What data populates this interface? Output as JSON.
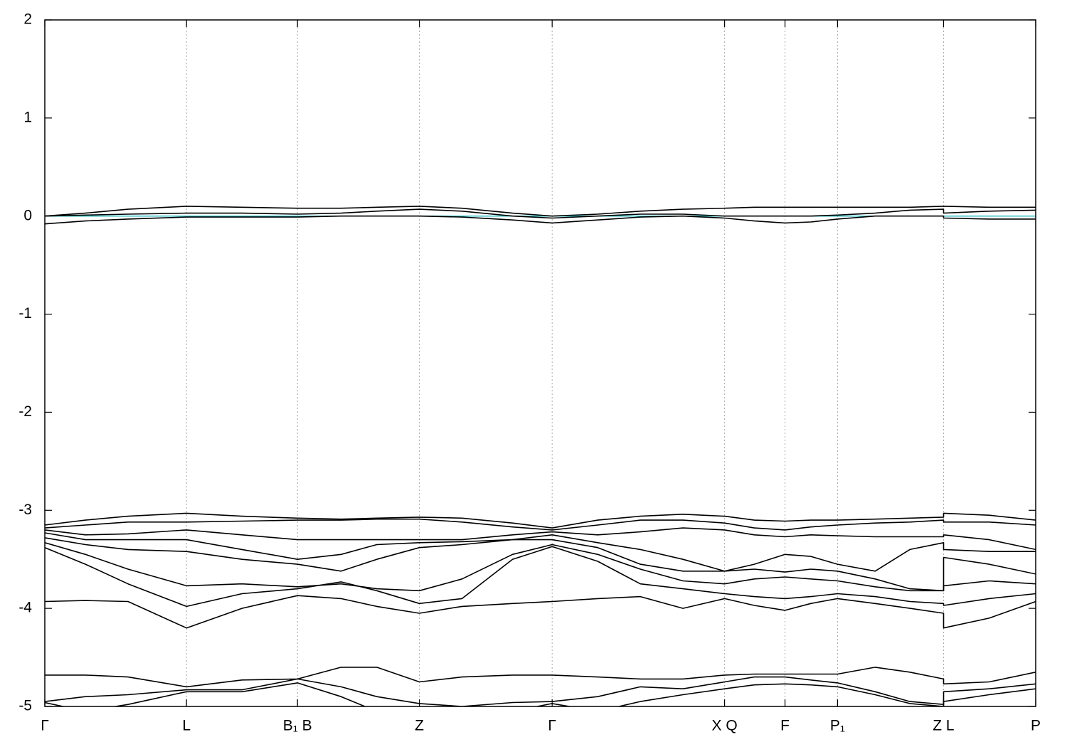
{
  "chart_data": {
    "type": "line",
    "x": [
      0,
      0.041,
      0.084,
      0.143,
      0.199,
      0.255,
      0.299,
      0.335,
      0.378,
      0.421,
      0.472,
      0.512,
      0.558,
      0.601,
      0.644,
      0.686,
      0.716,
      0.747,
      0.773,
      0.8,
      0.838,
      0.873,
      0.907,
      0.907,
      0.953,
      1
    ],
    "xlim": [
      0,
      1
    ],
    "xticks": [
      {
        "value": 0,
        "label": "Γ"
      },
      {
        "value": 0.143,
        "label": "L"
      },
      {
        "value": 0.255,
        "label": "B₁ B"
      },
      {
        "value": 0.378,
        "label": "Z"
      },
      {
        "value": 0.512,
        "label": "Γ"
      },
      {
        "value": 0.686,
        "label": "X Q"
      },
      {
        "value": 0.747,
        "label": "F"
      },
      {
        "value": 0.8,
        "label": "P₁"
      },
      {
        "value": 0.907,
        "label": "Z L"
      },
      {
        "value": 1,
        "label": "P"
      }
    ],
    "ylim": [
      -5,
      2
    ],
    "yticks": [
      -5,
      -4,
      -3,
      -2,
      -1,
      0,
      1,
      2
    ],
    "grid": true,
    "fermi_level": 0,
    "fermi_color": "#33c3c8",
    "series": [
      {
        "color": "#000000",
        "values": [
          0.0,
          0.03,
          0.07,
          0.1,
          0.09,
          0.08,
          0.08,
          0.09,
          0.1,
          0.08,
          0.03,
          0.0,
          0.02,
          0.05,
          0.07,
          0.08,
          0.09,
          0.09,
          0.09,
          0.09,
          0.09,
          0.09,
          0.1,
          0.1,
          0.09,
          0.09
        ]
      },
      {
        "color": "#000000",
        "values": [
          0.0,
          0.01,
          0.02,
          0.03,
          0.03,
          0.02,
          0.03,
          0.05,
          0.07,
          0.05,
          0.0,
          -0.02,
          0.0,
          0.02,
          0.02,
          0.0,
          0.0,
          0.0,
          0.0,
          0.01,
          0.03,
          0.06,
          0.07,
          0.03,
          0.05,
          0.06
        ]
      },
      {
        "color": "#000000",
        "values": [
          -0.08,
          -0.05,
          -0.03,
          -0.01,
          -0.01,
          -0.01,
          0.0,
          0.0,
          0.0,
          -0.01,
          -0.04,
          -0.07,
          -0.04,
          -0.01,
          0.0,
          -0.02,
          -0.05,
          -0.07,
          -0.06,
          -0.03,
          0.0,
          0.0,
          0.0,
          -0.02,
          -0.03,
          -0.03
        ]
      },
      {
        "color": "#000000",
        "values": [
          -3.15,
          -3.1,
          -3.06,
          -3.03,
          -3.06,
          -3.08,
          -3.09,
          -3.08,
          -3.07,
          -3.08,
          -3.13,
          -3.18,
          -3.1,
          -3.06,
          -3.04,
          -3.06,
          -3.1,
          -3.11,
          -3.1,
          -3.1,
          -3.09,
          -3.08,
          -3.07,
          -3.03,
          -3.05,
          -3.1
        ]
      },
      {
        "color": "#000000",
        "values": [
          -3.18,
          -3.15,
          -3.12,
          -3.12,
          -3.11,
          -3.1,
          -3.1,
          -3.09,
          -3.09,
          -3.12,
          -3.17,
          -3.2,
          -3.15,
          -3.1,
          -3.1,
          -3.13,
          -3.18,
          -3.2,
          -3.17,
          -3.15,
          -3.13,
          -3.12,
          -3.1,
          -3.12,
          -3.12,
          -3.15
        ]
      },
      {
        "color": "#000000",
        "values": [
          -3.2,
          -3.25,
          -3.24,
          -3.2,
          -3.25,
          -3.3,
          -3.3,
          -3.3,
          -3.3,
          -3.3,
          -3.25,
          -3.22,
          -3.25,
          -3.22,
          -3.18,
          -3.2,
          -3.25,
          -3.27,
          -3.25,
          -3.26,
          -3.27,
          -3.27,
          -3.27,
          -3.25,
          -3.3,
          -3.4
        ]
      },
      {
        "color": "#000000",
        "values": [
          -3.23,
          -3.3,
          -3.3,
          -3.3,
          -3.4,
          -3.5,
          -3.45,
          -3.35,
          -3.33,
          -3.32,
          -3.3,
          -3.25,
          -3.33,
          -3.4,
          -3.5,
          -3.62,
          -3.55,
          -3.45,
          -3.47,
          -3.55,
          -3.62,
          -3.4,
          -3.33,
          -3.4,
          -3.42,
          -3.42
        ]
      },
      {
        "color": "#000000",
        "values": [
          -3.28,
          -3.35,
          -3.4,
          -3.42,
          -3.5,
          -3.55,
          -3.62,
          -3.5,
          -3.38,
          -3.35,
          -3.3,
          -3.3,
          -3.38,
          -3.55,
          -3.62,
          -3.62,
          -3.6,
          -3.63,
          -3.6,
          -3.62,
          -3.7,
          -3.8,
          -3.82,
          -3.48,
          -3.55,
          -3.65
        ]
      },
      {
        "color": "#000000",
        "values": [
          -3.33,
          -3.45,
          -3.6,
          -3.77,
          -3.75,
          -3.78,
          -3.75,
          -3.8,
          -3.82,
          -3.7,
          -3.45,
          -3.35,
          -3.45,
          -3.6,
          -3.72,
          -3.75,
          -3.7,
          -3.68,
          -3.7,
          -3.72,
          -3.78,
          -3.82,
          -3.82,
          -3.77,
          -3.72,
          -3.75
        ]
      },
      {
        "color": "#000000",
        "values": [
          -3.38,
          -3.55,
          -3.75,
          -3.98,
          -3.85,
          -3.8,
          -3.73,
          -3.82,
          -3.95,
          -3.9,
          -3.5,
          -3.37,
          -3.52,
          -3.75,
          -3.8,
          -3.85,
          -3.88,
          -3.9,
          -3.88,
          -3.85,
          -3.88,
          -3.93,
          -3.95,
          -3.97,
          -3.9,
          -3.85
        ]
      },
      {
        "color": "#000000",
        "values": [
          -3.93,
          -3.92,
          -3.93,
          -4.2,
          -4.0,
          -3.87,
          -3.9,
          -3.98,
          -4.05,
          -3.98,
          -3.95,
          -3.93,
          -3.9,
          -3.88,
          -4.0,
          -3.9,
          -3.97,
          -4.02,
          -3.95,
          -3.9,
          -3.95,
          -4.0,
          -4.05,
          -4.2,
          -4.1,
          -3.93
        ]
      },
      {
        "color": "#000000",
        "values": [
          -4.68,
          -4.68,
          -4.7,
          -4.8,
          -4.73,
          -4.72,
          -4.6,
          -4.6,
          -4.75,
          -4.7,
          -4.68,
          -4.68,
          -4.7,
          -4.72,
          -4.72,
          -4.68,
          -4.67,
          -4.67,
          -4.67,
          -4.67,
          -4.6,
          -4.65,
          -4.72,
          -4.77,
          -4.75,
          -4.65
        ]
      },
      {
        "color": "#000000",
        "values": [
          -4.95,
          -4.9,
          -4.88,
          -4.83,
          -4.83,
          -4.72,
          -4.8,
          -4.9,
          -4.97,
          -5.0,
          -4.96,
          -4.95,
          -4.9,
          -4.8,
          -4.82,
          -4.75,
          -4.7,
          -4.7,
          -4.73,
          -4.76,
          -4.85,
          -4.95,
          -4.98,
          -4.85,
          -4.82,
          -4.77
        ]
      },
      {
        "color": "#000000",
        "values": [
          -4.96,
          -5.05,
          -4.98,
          -4.85,
          -4.85,
          -4.76,
          -4.9,
          -5.05,
          -5.0,
          -5.1,
          -5.05,
          -4.97,
          -5.05,
          -4.95,
          -4.88,
          -4.82,
          -4.78,
          -4.77,
          -4.78,
          -4.8,
          -4.88,
          -4.97,
          -5.0,
          -4.95,
          -4.88,
          -4.82
        ]
      }
    ]
  }
}
